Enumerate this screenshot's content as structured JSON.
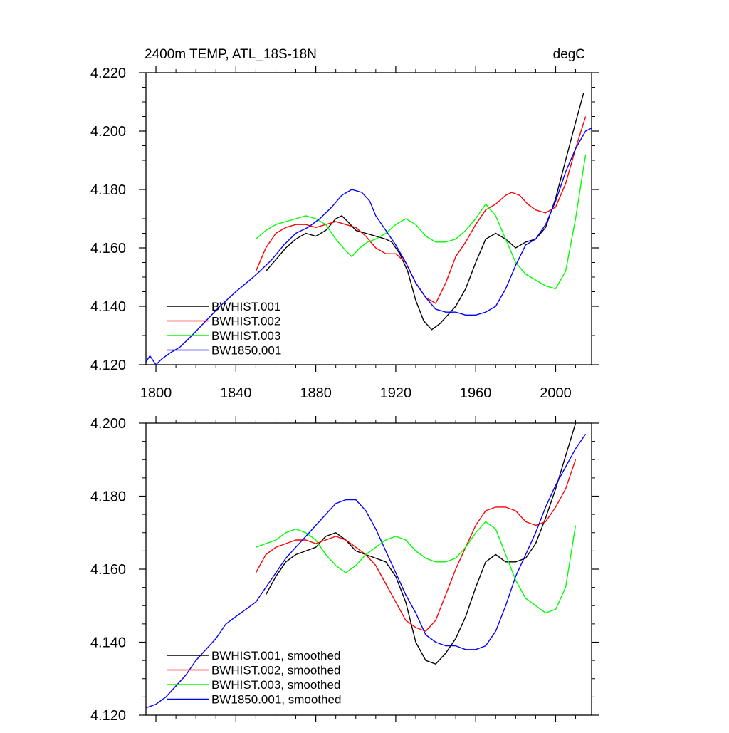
{
  "header": {
    "left": "2400m TEMP, ATL_18S-18N",
    "right": "degC"
  },
  "chart_data": [
    {
      "type": "line",
      "xlim": [
        1795,
        2018
      ],
      "ylim": [
        4.12,
        4.22
      ],
      "yticks": [
        4.12,
        4.14,
        4.16,
        4.18,
        4.2,
        4.22
      ],
      "ytick_labels": [
        "4.120",
        "4.140",
        "4.160",
        "4.180",
        "4.200",
        "4.220"
      ],
      "xticks": [
        1800,
        1840,
        1880,
        1920,
        1960,
        2000
      ],
      "xtick_labels": [
        "1800",
        "1840",
        "1880",
        "1920",
        "1960",
        "2000"
      ],
      "legend_position": "bottom-left",
      "series": [
        {
          "name": "BWHIST.001",
          "color": "#000000",
          "x": [
            1855,
            1860,
            1865,
            1870,
            1875,
            1880,
            1885,
            1890,
            1893,
            1896,
            1900,
            1905,
            1910,
            1915,
            1918,
            1922,
            1926,
            1930,
            1934,
            1938,
            1942,
            1946,
            1950,
            1955,
            1960,
            1965,
            1970,
            1975,
            1980,
            1985,
            1990,
            1995,
            2000,
            2005,
            2010,
            2014
          ],
          "y": [
            4.152,
            4.156,
            4.16,
            4.163,
            4.165,
            4.164,
            4.166,
            4.17,
            4.171,
            4.169,
            4.166,
            4.165,
            4.164,
            4.163,
            4.162,
            4.158,
            4.152,
            4.142,
            4.135,
            4.132,
            4.134,
            4.137,
            4.14,
            4.146,
            4.155,
            4.163,
            4.165,
            4.163,
            4.16,
            4.162,
            4.163,
            4.167,
            4.177,
            4.19,
            4.203,
            4.213
          ]
        },
        {
          "name": "BWHIST.002",
          "color": "#ff0000",
          "x": [
            1850,
            1855,
            1860,
            1865,
            1870,
            1875,
            1880,
            1885,
            1890,
            1895,
            1900,
            1905,
            1910,
            1915,
            1920,
            1925,
            1930,
            1935,
            1940,
            1945,
            1950,
            1955,
            1960,
            1965,
            1970,
            1975,
            1978,
            1982,
            1986,
            1990,
            1995,
            2000,
            2005,
            2010,
            2015
          ],
          "y": [
            4.152,
            4.16,
            4.165,
            4.167,
            4.168,
            4.168,
            4.167,
            4.168,
            4.169,
            4.168,
            4.167,
            4.164,
            4.16,
            4.158,
            4.158,
            4.155,
            4.148,
            4.143,
            4.141,
            4.148,
            4.157,
            4.162,
            4.168,
            4.173,
            4.175,
            4.178,
            4.179,
            4.178,
            4.175,
            4.173,
            4.172,
            4.174,
            4.182,
            4.194,
            4.205
          ]
        },
        {
          "name": "BWHIST.003",
          "color": "#00ff00",
          "x": [
            1850,
            1855,
            1860,
            1865,
            1870,
            1875,
            1880,
            1885,
            1890,
            1895,
            1898,
            1902,
            1906,
            1910,
            1915,
            1920,
            1925,
            1930,
            1935,
            1940,
            1945,
            1950,
            1955,
            1960,
            1965,
            1970,
            1975,
            1980,
            1985,
            1990,
            1995,
            2000,
            2005,
            2010,
            2015
          ],
          "y": [
            4.163,
            4.166,
            4.168,
            4.169,
            4.17,
            4.171,
            4.17,
            4.168,
            4.163,
            4.159,
            4.157,
            4.16,
            4.162,
            4.163,
            4.165,
            4.168,
            4.17,
            4.168,
            4.164,
            4.162,
            4.162,
            4.163,
            4.166,
            4.17,
            4.175,
            4.171,
            4.163,
            4.155,
            4.151,
            4.149,
            4.147,
            4.146,
            4.152,
            4.17,
            4.192
          ]
        },
        {
          "name": "BW1850.001",
          "color": "#0000ff",
          "x": [
            1795,
            1797,
            1800,
            1803,
            1807,
            1812,
            1818,
            1825,
            1832,
            1840,
            1847,
            1852,
            1858,
            1864,
            1870,
            1876,
            1882,
            1888,
            1893,
            1898,
            1903,
            1907,
            1910,
            1915,
            1920,
            1925,
            1930,
            1935,
            1940,
            1945,
            1950,
            1955,
            1960,
            1965,
            1970,
            1975,
            1980,
            1985,
            1990,
            1995,
            2000,
            2005,
            2010,
            2015,
            2018
          ],
          "y": [
            4.121,
            4.123,
            4.12,
            4.122,
            4.124,
            4.126,
            4.13,
            4.135,
            4.14,
            4.145,
            4.149,
            4.152,
            4.156,
            4.161,
            4.165,
            4.167,
            4.17,
            4.174,
            4.178,
            4.18,
            4.179,
            4.176,
            4.171,
            4.166,
            4.161,
            4.155,
            4.148,
            4.143,
            4.139,
            4.138,
            4.138,
            4.137,
            4.137,
            4.138,
            4.14,
            4.146,
            4.154,
            4.161,
            4.163,
            4.168,
            4.176,
            4.186,
            4.194,
            4.2,
            4.201
          ]
        }
      ]
    },
    {
      "type": "line",
      "xlim": [
        1795,
        2018
      ],
      "ylim": [
        4.12,
        4.2
      ],
      "yticks": [
        4.12,
        4.14,
        4.16,
        4.18,
        4.2
      ],
      "ytick_labels": [
        "4.120",
        "4.140",
        "4.160",
        "4.180",
        "4.200"
      ],
      "xticks": [
        1800,
        1840,
        1880,
        1920,
        1960,
        2000
      ],
      "xtick_labels": [],
      "legend_position": "bottom-left",
      "series": [
        {
          "name": "BWHIST.001, smoothed",
          "color": "#000000",
          "x": [
            1855,
            1860,
            1865,
            1870,
            1875,
            1880,
            1885,
            1890,
            1895,
            1900,
            1905,
            1910,
            1915,
            1920,
            1925,
            1930,
            1935,
            1940,
            1945,
            1950,
            1955,
            1960,
            1965,
            1970,
            1975,
            1980,
            1985,
            1990,
            1995,
            2000,
            2005,
            2010
          ],
          "y": [
            4.153,
            4.158,
            4.162,
            4.164,
            4.165,
            4.166,
            4.169,
            4.17,
            4.168,
            4.165,
            4.164,
            4.163,
            4.162,
            4.158,
            4.151,
            4.14,
            4.135,
            4.134,
            4.137,
            4.141,
            4.147,
            4.155,
            4.162,
            4.164,
            4.162,
            4.162,
            4.163,
            4.167,
            4.174,
            4.182,
            4.191,
            4.2
          ]
        },
        {
          "name": "BWHIST.002, smoothed",
          "color": "#ff0000",
          "x": [
            1850,
            1855,
            1860,
            1865,
            1870,
            1875,
            1880,
            1885,
            1890,
            1895,
            1900,
            1905,
            1910,
            1915,
            1920,
            1925,
            1930,
            1935,
            1940,
            1945,
            1950,
            1955,
            1960,
            1965,
            1970,
            1975,
            1980,
            1985,
            1990,
            1995,
            2000,
            2005,
            2010
          ],
          "y": [
            4.159,
            4.164,
            4.166,
            4.167,
            4.168,
            4.168,
            4.167,
            4.168,
            4.169,
            4.168,
            4.166,
            4.164,
            4.161,
            4.156,
            4.151,
            4.146,
            4.144,
            4.143,
            4.146,
            4.153,
            4.16,
            4.166,
            4.172,
            4.176,
            4.177,
            4.177,
            4.176,
            4.173,
            4.172,
            4.173,
            4.177,
            4.182,
            4.19
          ]
        },
        {
          "name": "BWHIST.003, smoothed",
          "color": "#00ff00",
          "x": [
            1850,
            1855,
            1860,
            1865,
            1870,
            1875,
            1880,
            1885,
            1890,
            1895,
            1900,
            1905,
            1910,
            1915,
            1920,
            1925,
            1930,
            1935,
            1940,
            1945,
            1950,
            1955,
            1960,
            1965,
            1970,
            1975,
            1980,
            1985,
            1990,
            1995,
            2000,
            2005,
            2010
          ],
          "y": [
            4.166,
            4.167,
            4.168,
            4.17,
            4.171,
            4.17,
            4.168,
            4.164,
            4.161,
            4.159,
            4.161,
            4.164,
            4.166,
            4.168,
            4.169,
            4.168,
            4.165,
            4.163,
            4.162,
            4.162,
            4.163,
            4.166,
            4.17,
            4.173,
            4.171,
            4.164,
            4.157,
            4.152,
            4.15,
            4.148,
            4.149,
            4.155,
            4.172
          ]
        },
        {
          "name": "BW1850.001, smoothed",
          "color": "#0000ff",
          "x": [
            1795,
            1800,
            1805,
            1810,
            1815,
            1820,
            1825,
            1830,
            1835,
            1840,
            1845,
            1850,
            1855,
            1860,
            1865,
            1870,
            1875,
            1880,
            1885,
            1890,
            1895,
            1900,
            1905,
            1910,
            1915,
            1920,
            1925,
            1930,
            1935,
            1940,
            1945,
            1950,
            1955,
            1960,
            1965,
            1970,
            1975,
            1980,
            1985,
            1990,
            1995,
            2000,
            2005,
            2010,
            2015
          ],
          "y": [
            4.122,
            4.123,
            4.125,
            4.128,
            4.131,
            4.135,
            4.138,
            4.141,
            4.145,
            4.147,
            4.149,
            4.151,
            4.155,
            4.159,
            4.163,
            4.166,
            4.169,
            4.172,
            4.175,
            4.178,
            4.179,
            4.179,
            4.176,
            4.171,
            4.165,
            4.159,
            4.153,
            4.148,
            4.142,
            4.14,
            4.139,
            4.139,
            4.138,
            4.138,
            4.139,
            4.143,
            4.15,
            4.158,
            4.164,
            4.17,
            4.177,
            4.183,
            4.188,
            4.193,
            4.197
          ]
        }
      ]
    }
  ]
}
